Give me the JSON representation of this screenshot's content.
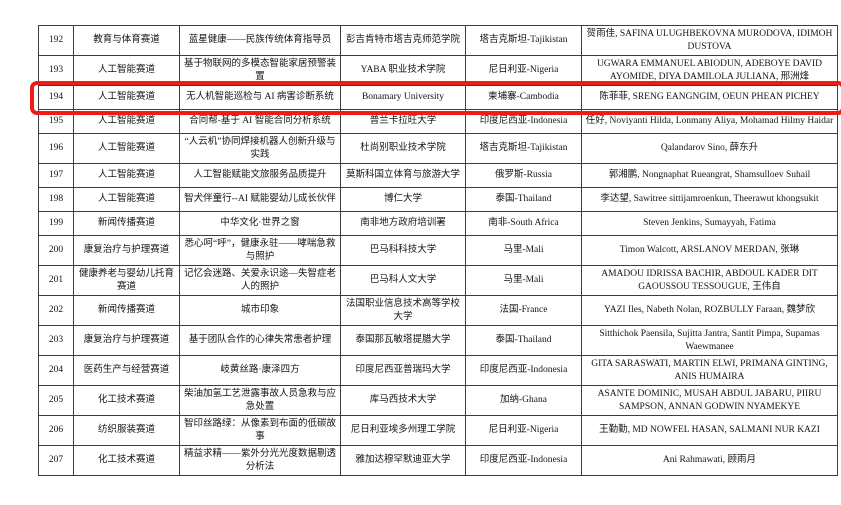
{
  "table": {
    "column_keys": [
      "number",
      "track",
      "project",
      "university",
      "country",
      "members"
    ],
    "highlight_color": "#ee1c14",
    "rows": [
      {
        "number": "192",
        "track": "教育与体育赛道",
        "project": "蓝星健康——民族传统体育指导员",
        "university": "彭吉肯特市塔吉克师范学院",
        "country": "塔吉克斯坦-Tajikistan",
        "members": "贺雨佳, SAFINA ULUGHBEKOVNA MURODOVA, IDIMOH DUSTOVA",
        "highlighted": false
      },
      {
        "number": "193",
        "track": "人工智能赛道",
        "project": "基于物联网的多模态智能家居预警装置",
        "university": "YABA 职业技术学院",
        "country": "尼日利亚-Nigeria",
        "members": "UGWARA EMMANUEL ABIODUN, ADEBOYE DAVID AYOMIDE, DIYA DAMILOLA JULIANA, 邢洲烽",
        "highlighted": false
      },
      {
        "number": "194",
        "track": "人工智能赛道",
        "project": "无人机智能巡检与 AI 病害诊断系统",
        "university": "Bonamary University",
        "country": "柬埔寨-Cambodia",
        "members": "陈菲菲, SRENG EANGNGIM, OEUN PHEAN PICHEY",
        "highlighted": true
      },
      {
        "number": "195",
        "track": "人工智能赛道",
        "project": "合同帮-基于 AI 智能合同分析系统",
        "university": "普兰卡拉旺大学",
        "country": "印度尼西亚-Indonesia",
        "members": "任好, Noviyanti Hilda, Lonmany Aliya, Mohamad Hilmy Haidar",
        "highlighted": false
      },
      {
        "number": "196",
        "track": "人工智能赛道",
        "project": "“人云机”协同焊接机器人创新升级与实践",
        "university": "杜尚别职业技术学院",
        "country": "塔吉克斯坦-Tajikistan",
        "members": "Qalandarov Sino, 薛东升",
        "highlighted": false
      },
      {
        "number": "197",
        "track": "人工智能赛道",
        "project": "人工智能赋能文旅服务品质提升",
        "university": "莫斯科国立体育与旅游大学",
        "country": "俄罗斯-Russia",
        "members": "郭湘鹏, Nongnaphat Rueangrat, Shamsulloev Suhail",
        "highlighted": false
      },
      {
        "number": "198",
        "track": "人工智能赛道",
        "project": "智犬伴童行--AI 赋能婴幼儿成长伙伴",
        "university": "博仁大学",
        "country": "泰国-Thailand",
        "members": "李达望, Sawitree sittijamroenkun, Theerawut khongsukit",
        "highlighted": false
      },
      {
        "number": "199",
        "track": "新闻传播赛道",
        "project": "中华文化·世界之窗",
        "university": "南非地方政府培训署",
        "country": "南非-South Africa",
        "members": "Steven Jenkins, Sumayyah, Fatima",
        "highlighted": false
      },
      {
        "number": "200",
        "track": "康复治疗与护理赛道",
        "project": "悉心呵“呼”，健康永驻——哮喘急救与照护",
        "university": "巴马科科技大学",
        "country": "马里-Mali",
        "members": "Timon Walcott, ARSLANOV MERDAN, 张琳",
        "highlighted": false
      },
      {
        "number": "201",
        "track": "健康养老与婴幼儿托育赛道",
        "project": "记忆会迷路、关爱永识途—失智症老人的照护",
        "university": "巴马科人文大学",
        "country": "马里-Mali",
        "members": "AMADOU IDRISSA BACHIR, ABDOUL KADER DIT GAOUSSOU TESSOUGUE, 王伟自",
        "highlighted": false
      },
      {
        "number": "202",
        "track": "新闻传播赛道",
        "project": "城市印象",
        "university": "法国职业信息技术高等学校大学",
        "country": "法国-France",
        "members": "YAZI Iles, Nabeth Nolan, ROZBULLY Faraan, 魏梦欣",
        "highlighted": false
      },
      {
        "number": "203",
        "track": "康复治疗与护理赛道",
        "project": "基于团队合作的心律失常患者护理",
        "university": "泰国那瓦敏塔提腊大学",
        "country": "泰国-Thailand",
        "members": "Sitthichok Paensila, Sujitta Jantra, Santit Pimpa, Supamas Waewmanee",
        "highlighted": false
      },
      {
        "number": "204",
        "track": "医药生产与经营赛道",
        "project": "岐黄丝路·康泽四方",
        "university": "印度尼西亚普瑞玛大学",
        "country": "印度尼西亚-Indonesia",
        "members": "GITA SARASWATI, MARTIN ELWI, PRIMANA GINTING, ANIS HUMAIRA",
        "highlighted": false
      },
      {
        "number": "205",
        "track": "化工技术赛道",
        "project": "柴油加氢工艺泄露事故人员急救与应急处置",
        "university": "库马西技术大学",
        "country": "加纳-Ghana",
        "members": "ASANTE DOMINIC, MUSAH ABDUL JABARU, PIIRU SAMPSON, ANNAN GODWIN NYAMEKYE",
        "highlighted": false
      },
      {
        "number": "206",
        "track": "纺织服装赛道",
        "project": "智印丝路绿：从像素到布面的低碳故事",
        "university": "尼日利亚埃多州理工学院",
        "country": "尼日利亚-Nigeria",
        "members": "王勤勤, MD NOWFEL HASAN, SALMANI NUR KAZI",
        "highlighted": false
      },
      {
        "number": "207",
        "track": "化工技术赛道",
        "project": "精益求精——紫外分光光度数据剔透分析法",
        "university": "雅加达穆罕默迪亚大学",
        "country": "印度尼西亚-Indonesia",
        "members": "Ani Rahmawati, 顾雨月",
        "highlighted": false
      }
    ]
  }
}
